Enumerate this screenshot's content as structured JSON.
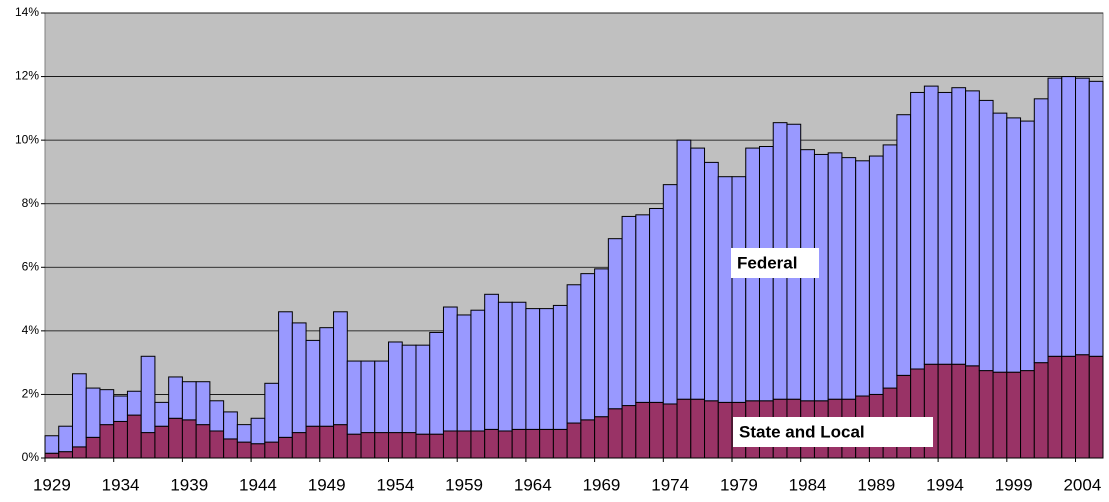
{
  "chart_data": {
    "type": "stacked_bar",
    "categories": [
      "1929",
      null,
      null,
      null,
      null,
      "1934",
      null,
      null,
      null,
      null,
      "1939",
      null,
      null,
      null,
      null,
      "1944",
      null,
      null,
      null,
      null,
      "1949",
      null,
      null,
      null,
      null,
      "1954",
      null,
      null,
      null,
      null,
      "1959",
      null,
      null,
      null,
      null,
      "1964",
      null,
      null,
      null,
      null,
      "1969",
      null,
      null,
      null,
      null,
      "1974",
      null,
      null,
      null,
      null,
      "1979",
      null,
      null,
      null,
      null,
      "1984",
      null,
      null,
      null,
      null,
      "1989",
      null,
      null,
      null,
      null,
      "1994",
      null,
      null,
      null,
      null,
      "1999",
      null,
      null,
      null,
      null,
      "2004",
      null
    ],
    "series": [
      {
        "name": "State and Local",
        "color": "#993366",
        "values": [
          0.15,
          0.2,
          0.35,
          0.65,
          1.05,
          1.15,
          1.35,
          0.8,
          1.0,
          1.25,
          1.2,
          1.05,
          0.85,
          0.6,
          0.5,
          0.45,
          0.5,
          0.65,
          0.8,
          1.0,
          1.0,
          1.05,
          0.75,
          0.8,
          0.8,
          0.8,
          0.8,
          0.75,
          0.75,
          0.85,
          0.85,
          0.85,
          0.9,
          0.85,
          0.9,
          0.9,
          0.9,
          0.9,
          1.1,
          1.2,
          1.3,
          1.55,
          1.65,
          1.75,
          1.75,
          1.7,
          1.85,
          1.85,
          1.8,
          1.75,
          1.75,
          1.8,
          1.8,
          1.85,
          1.85,
          1.8,
          1.8,
          1.85,
          1.85,
          1.95,
          2.0,
          2.2,
          2.6,
          2.8,
          2.95,
          2.95,
          2.95,
          2.9,
          2.75,
          2.7,
          2.7,
          2.75,
          3.0,
          3.2,
          3.2,
          3.25,
          3.2
        ]
      },
      {
        "name": "Federal",
        "color": "#9999ff",
        "values": [
          0.55,
          0.8,
          2.3,
          1.55,
          1.1,
          0.8,
          0.75,
          2.4,
          0.75,
          1.3,
          1.2,
          1.35,
          0.95,
          0.85,
          0.55,
          0.8,
          1.85,
          3.95,
          3.45,
          2.7,
          3.1,
          3.55,
          2.3,
          2.25,
          2.25,
          2.85,
          2.75,
          2.8,
          3.2,
          3.9,
          3.65,
          3.8,
          4.25,
          4.05,
          4.0,
          3.8,
          3.8,
          3.9,
          4.35,
          4.6,
          4.65,
          5.35,
          5.95,
          5.9,
          6.1,
          6.9,
          8.15,
          7.9,
          7.5,
          7.1,
          7.1,
          7.95,
          8.0,
          8.7,
          8.65,
          7.9,
          7.75,
          7.75,
          7.6,
          7.4,
          7.5,
          7.65,
          8.2,
          8.7,
          8.75,
          8.55,
          8.7,
          8.65,
          8.5,
          8.15,
          8.0,
          7.85,
          8.3,
          8.75,
          8.8,
          8.7,
          8.65
        ]
      }
    ],
    "ylim": [
      0,
      14
    ],
    "yticks": [
      {
        "value": 0,
        "label": "0%"
      },
      {
        "value": 2,
        "label": "2%"
      },
      {
        "value": 4,
        "label": "4%"
      },
      {
        "value": 6,
        "label": "6%"
      },
      {
        "value": 8,
        "label": "8%"
      },
      {
        "value": 10,
        "label": "10%"
      },
      {
        "value": 12,
        "label": "12%"
      },
      {
        "value": 14,
        "label": "14%"
      }
    ],
    "grid": true,
    "plot_background": "#c0c0c0"
  }
}
